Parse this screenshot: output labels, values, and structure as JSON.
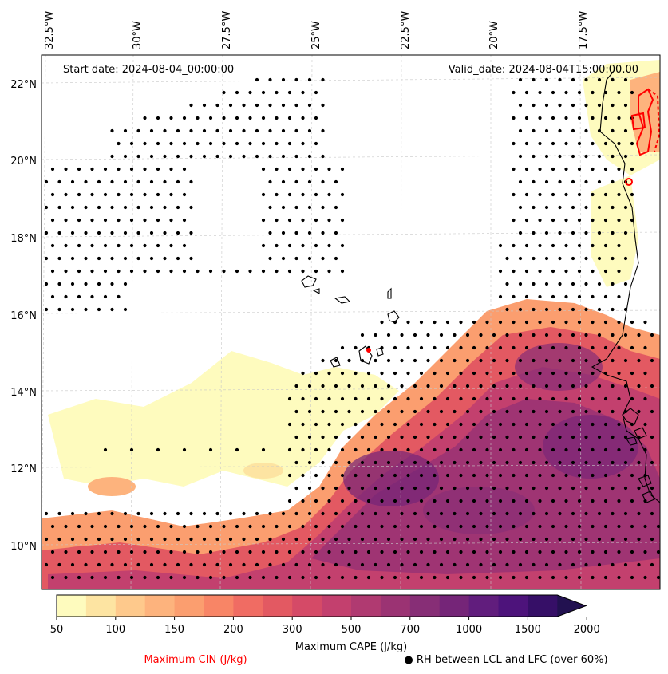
{
  "map": {
    "start_date": "Start date: 2024-08-04_00:00:00",
    "valid_date": "Valid_date: 2024-08-04T15:00:00.00",
    "lon_labels": [
      "32.5°W",
      "30°W",
      "27.5°W",
      "25°W",
      "22.5°W",
      "20°W",
      "17.5°W"
    ],
    "lat_labels": [
      "22°N",
      "20°N",
      "18°N",
      "16°N",
      "14°N",
      "12°N",
      "10°N"
    ],
    "extent": {
      "lon_min": -32.6,
      "lon_max": -15.4,
      "lat_min": 8.9,
      "lat_max": 22.8
    }
  },
  "colorbar": {
    "title": "Maximum CAPE (J/kg)",
    "levels": [
      "50",
      "100",
      "150",
      "200",
      "300",
      "500",
      "700",
      "1000",
      "1500",
      "2000"
    ],
    "colors": [
      "#fefbbe",
      "#fde4a2",
      "#fec98c",
      "#fdb37d",
      "#fb9e6f",
      "#f88566",
      "#f06c63",
      "#e35962",
      "#d54a67",
      "#c3406e",
      "#b03a71",
      "#9b3373",
      "#872e76",
      "#752578",
      "#611d7d",
      "#4d137b",
      "#360f67",
      "#221150"
    ]
  },
  "legend": {
    "cin_label": "Maximum CIN (J/kg)",
    "cin_color": "#ff0000",
    "rh_label": "● RH between LCL and LFC (over 60%)"
  }
}
